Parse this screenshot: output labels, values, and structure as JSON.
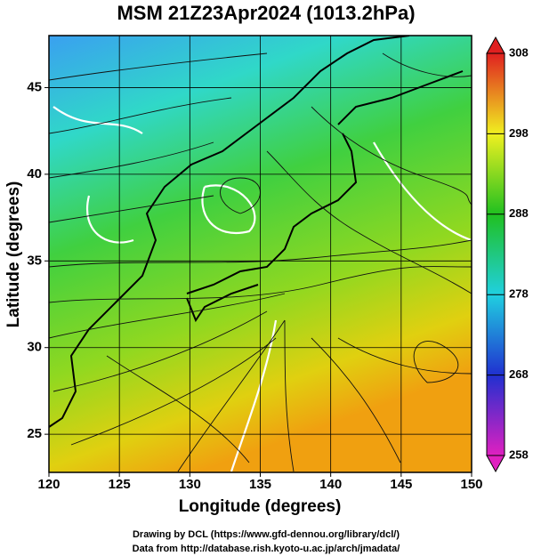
{
  "chart_data": {
    "type": "map",
    "title": "MSM 21Z23Apr2024 (1013.2hPa)",
    "xlabel": "Longitude (degrees)",
    "ylabel": "Latitude  (degrees)",
    "xlim": [
      120,
      150
    ],
    "xticks": [
      120,
      125,
      130,
      135,
      140,
      145,
      150
    ],
    "ylim": [
      22.8,
      48
    ],
    "yticks": [
      25,
      30,
      35,
      40,
      45
    ],
    "grid": true,
    "colorbar": {
      "lim": [
        258,
        308
      ],
      "ticks": [
        258,
        268,
        278,
        288,
        298,
        308
      ],
      "colors": [
        "#e020c0",
        "#2030d0",
        "#20d0e0",
        "#20c020",
        "#f0f020",
        "#e02020"
      ]
    },
    "credits": [
      "Drawing by DCL (https://www.gfd-dennou.org/library/dcl/)",
      "Data from http://database.rish.kyoto-u.ac.jp/arch/jmadata/"
    ]
  }
}
